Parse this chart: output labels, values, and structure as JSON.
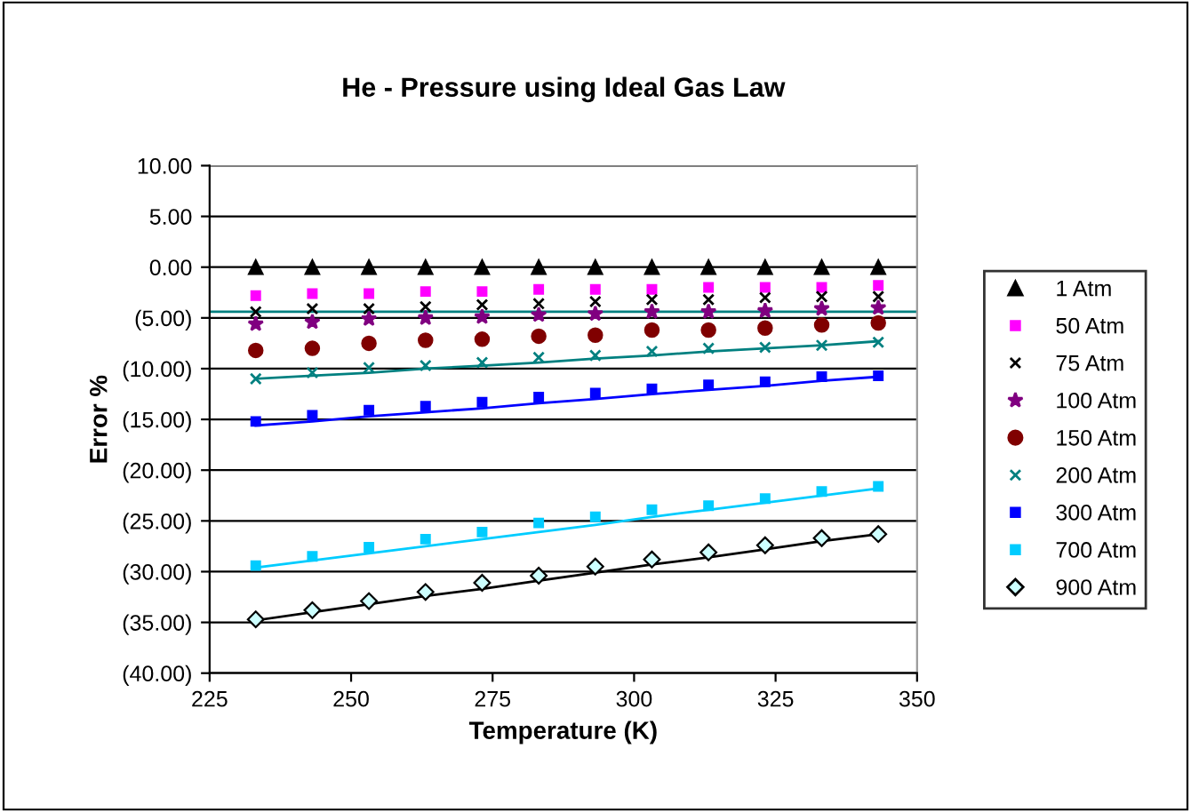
{
  "chart_data": {
    "type": "scatter",
    "title": "He - Pressure using Ideal Gas Law",
    "xlabel": "Temperature (K)",
    "ylabel": "Error %",
    "x": [
      233.15,
      243.15,
      253.15,
      263.15,
      273.15,
      283.15,
      293.15,
      303.15,
      313.15,
      323.15,
      333.15,
      343.15
    ],
    "series": [
      {
        "name": "1 Atm",
        "color": "#000000",
        "marker": "triangle",
        "values": [
          0,
          0,
          0,
          0,
          0,
          0,
          0,
          0,
          0,
          0,
          0,
          0
        ]
      },
      {
        "name": "50 Atm",
        "color": "#ff00ff",
        "marker": "square",
        "values": [
          -2.8,
          -2.6,
          -2.6,
          -2.4,
          -2.4,
          -2.2,
          -2.2,
          -2.2,
          -2.0,
          -2.0,
          -2.0,
          -1.8
        ]
      },
      {
        "name": "75 Atm",
        "color": "#000000",
        "marker": "cross",
        "values": [
          -4.4,
          -4.1,
          -4.1,
          -3.9,
          -3.7,
          -3.6,
          -3.4,
          -3.2,
          -3.2,
          -3.0,
          -2.9,
          -2.9
        ]
      },
      {
        "name": "100 Atm",
        "color": "#800080",
        "marker": "star",
        "values": [
          -5.6,
          -5.4,
          -5.1,
          -5.0,
          -4.9,
          -4.7,
          -4.6,
          -4.4,
          -4.4,
          -4.3,
          -4.1,
          -4.0
        ]
      },
      {
        "name": "150 Atm",
        "color": "#800000",
        "marker": "circle",
        "values": [
          -8.2,
          -8.0,
          -7.5,
          -7.2,
          -7.1,
          -6.8,
          -6.7,
          -6.2,
          -6.2,
          -6.0,
          -5.7,
          -5.5
        ]
      },
      {
        "name": "200 Atm",
        "color": "#008080",
        "marker": "cross",
        "values": [
          -11.0,
          -10.4,
          -9.9,
          -9.7,
          -9.4,
          -8.9,
          -8.7,
          -8.3,
          -8.0,
          -7.9,
          -7.7,
          -7.4
        ]
      },
      {
        "name": "300 Atm",
        "color": "#0000ff",
        "marker": "square",
        "values": [
          -15.2,
          -14.6,
          -14.1,
          -13.7,
          -13.3,
          -12.8,
          -12.4,
          -12.0,
          -11.6,
          -11.3,
          -10.8,
          -10.7
        ]
      },
      {
        "name": "700 Atm",
        "color": "#00ccff",
        "marker": "square",
        "values": [
          -29.4,
          -28.5,
          -27.6,
          -26.8,
          -26.1,
          -25.2,
          -24.6,
          -23.9,
          -23.5,
          -22.8,
          -22.1,
          -21.6
        ]
      },
      {
        "name": "900 Atm",
        "color": "#000000",
        "marker": "diamond",
        "values": [
          -34.7,
          -33.8,
          -32.9,
          -32.0,
          -31.1,
          -30.4,
          -29.5,
          -28.8,
          -28.1,
          -27.4,
          -26.7,
          -26.3
        ]
      },
      {
        "type": "line",
        "color": "#008080",
        "values": [
          -11.0,
          -10.7,
          -10.4,
          -10.0,
          -9.7,
          -9.4,
          -9.0,
          -8.7,
          -8.3,
          -8.0,
          -7.7,
          -7.3
        ]
      },
      {
        "type": "line",
        "color": "#0000ff",
        "values": [
          -15.6,
          -15.2,
          -14.7,
          -14.3,
          -13.9,
          -13.4,
          -13.0,
          -12.5,
          -12.1,
          -11.7,
          -11.2,
          -10.8
        ]
      },
      {
        "type": "line",
        "color": "#00ccff",
        "values": [
          -29.6,
          -28.9,
          -28.2,
          -27.5,
          -26.8,
          -26.1,
          -25.4,
          -24.6,
          -23.9,
          -23.2,
          -22.5,
          -21.8
        ]
      },
      {
        "type": "line",
        "color": "#000000",
        "values": [
          -34.8,
          -34.0,
          -33.2,
          -32.4,
          -31.7,
          -30.9,
          -30.1,
          -29.3,
          -28.6,
          -27.8,
          -27.0,
          -26.3
        ]
      }
    ],
    "ref_lines": [
      {
        "axis": "y",
        "value": -4.4,
        "color": "#008080"
      }
    ],
    "xlim": [
      225,
      350
    ],
    "xticks": [
      225,
      250,
      275,
      300,
      325,
      350
    ],
    "ylim": [
      -40,
      10
    ],
    "yticks": [
      {
        "value": 10,
        "label": "10.00"
      },
      {
        "value": 5,
        "label": "5.00"
      },
      {
        "value": 0,
        "label": "0.00"
      },
      {
        "value": -5,
        "label": "(5.00)"
      },
      {
        "value": -10,
        "label": "(10.00)"
      },
      {
        "value": -15,
        "label": "(15.00)"
      },
      {
        "value": -20,
        "label": "(20.00)"
      },
      {
        "value": -25,
        "label": "(25.00)"
      },
      {
        "value": -30,
        "label": "(30.00)"
      },
      {
        "value": -35,
        "label": "(35.00)"
      },
      {
        "value": -40,
        "label": "(40.00)"
      }
    ],
    "grid": "y",
    "legend": "right"
  }
}
